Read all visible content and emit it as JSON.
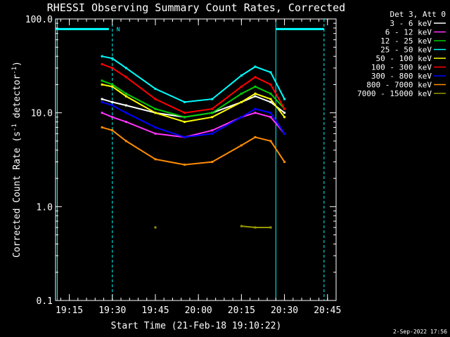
{
  "chart_data": {
    "type": "line",
    "title": "RHESSI Observing Summary Count Rates, Corrected",
    "xlabel": "Start Time (21-Feb-18 19:10:22)",
    "ylabel_parts": {
      "a": "Corrected Count Rate (s",
      "sup1": "-1",
      "b": " detector",
      "sup2": "-1",
      "c": ")"
    },
    "y_scale": "log",
    "ylim": [
      0.1,
      100.0
    ],
    "y_ticks": [
      {
        "value": 100.0,
        "label": "100.0"
      },
      {
        "value": 10.0,
        "label": "10.0"
      },
      {
        "value": 1.0,
        "label": "1.0"
      },
      {
        "value": 0.1,
        "label": "0.1"
      }
    ],
    "xlim_minutes": [
      19.17,
      20.8
    ],
    "x_ticks": [
      {
        "minute": 19.25,
        "label": "19:15"
      },
      {
        "minute": 19.5,
        "label": "19:30"
      },
      {
        "minute": 19.75,
        "label": "19:45"
      },
      {
        "minute": 20.0,
        "label": "20:00"
      },
      {
        "minute": 20.25,
        "label": "20:15"
      },
      {
        "minute": 20.5,
        "label": "20:30"
      },
      {
        "minute": 20.75,
        "label": "20:45"
      }
    ],
    "legend_header": "Det 3, Att 0",
    "series": [
      {
        "name": "3 - 6 keV",
        "color": "#ffffff",
        "values": [
          14,
          13,
          12,
          10,
          9,
          10,
          13,
          15,
          13,
          10
        ]
      },
      {
        "name": "6 - 12 keV",
        "color": "#ff33ff",
        "values": [
          10,
          9,
          8,
          6,
          5.5,
          6.5,
          9,
          10,
          9,
          6
        ]
      },
      {
        "name": "12 - 25 keV",
        "color": "#00cc00",
        "values": [
          22,
          20,
          16,
          11,
          9,
          10,
          16,
          19,
          16,
          11
        ]
      },
      {
        "name": "25 - 50 keV",
        "color": "#00ffff",
        "values": [
          40,
          38,
          30,
          18,
          13,
          14,
          25,
          31,
          27,
          14
        ]
      },
      {
        "name": "50 - 100 keV",
        "color": "#ffff00",
        "values": [
          20,
          19,
          15,
          10,
          8,
          9,
          13,
          16,
          14,
          9
        ]
      },
      {
        "name": "100 - 300 keV",
        "color": "#ff0000",
        "values": [
          33,
          30,
          24,
          14,
          10,
          11,
          19,
          24,
          20,
          11
        ]
      },
      {
        "name": "300 - 800 keV",
        "color": "#0000ff",
        "values": [
          13,
          12,
          10,
          7,
          5.5,
          6,
          9,
          11,
          10,
          6
        ]
      },
      {
        "name": "800 - 7000 keV",
        "color": "#ff8c00",
        "values": [
          7,
          6.5,
          5,
          3.2,
          2.8,
          3,
          4.5,
          5.5,
          5,
          3
        ]
      },
      {
        "name": "7000 - 15000 keV",
        "color": "#999900",
        "values": [
          null,
          null,
          null,
          0.6,
          null,
          null,
          0.62,
          0.6,
          0.6,
          null
        ]
      }
    ],
    "series_minutes": [
      19.44,
      19.5,
      19.58,
      19.75,
      19.92,
      20.08,
      20.25,
      20.33,
      20.42,
      20.5
    ],
    "markers": {
      "solid_lines_min": [
        19.18,
        20.45
      ],
      "dashed_lines_min": [
        19.5,
        20.73
      ],
      "bar_segments_min": [
        [
          19.17,
          19.48
        ],
        [
          20.45,
          20.73
        ]
      ],
      "bar_value": 78,
      "flag_label": "N"
    },
    "grid": false,
    "legend_position": "top-right outside"
  },
  "timestamp": "2-Sep-2022 17:56"
}
